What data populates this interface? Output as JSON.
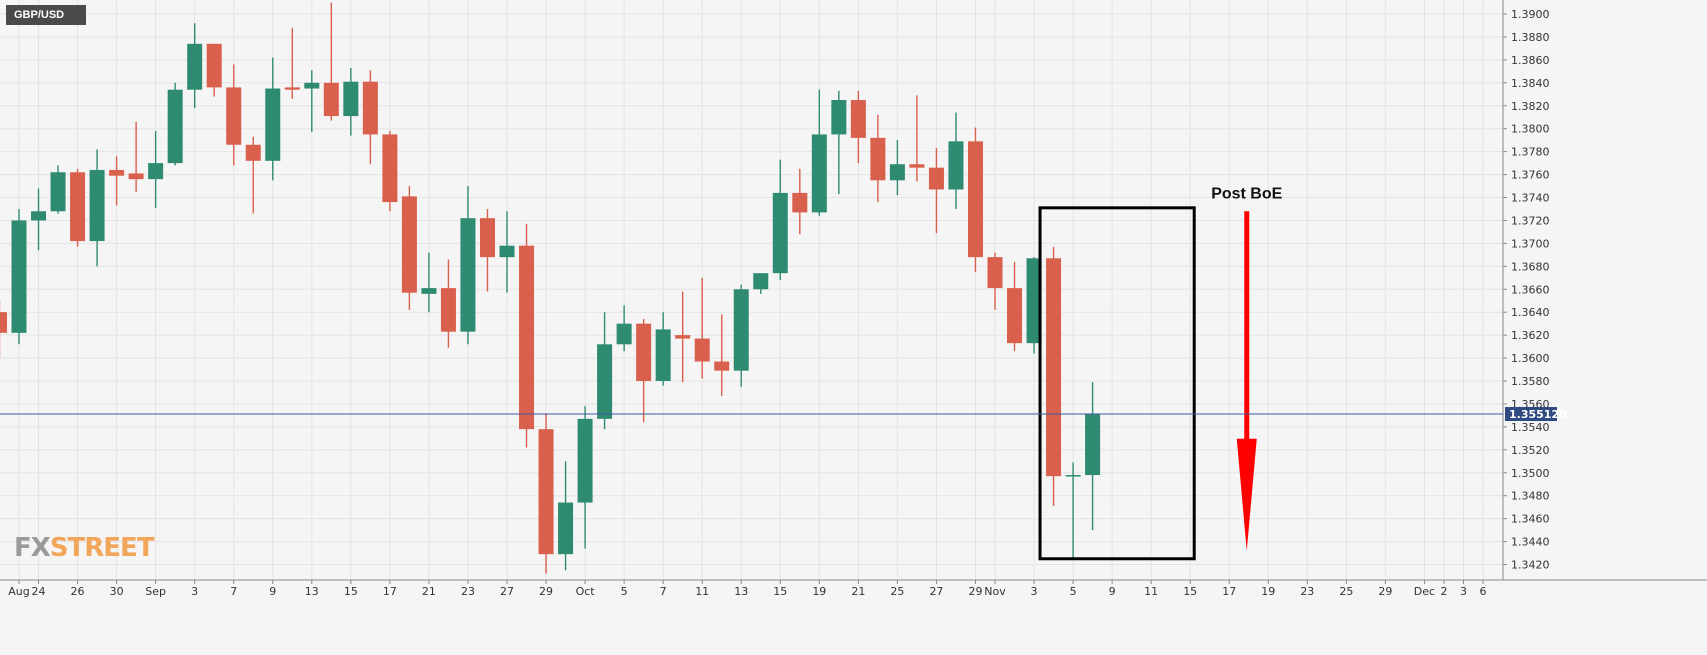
{
  "symbol": "GBP/USD",
  "logo": {
    "part1": "FX",
    "part2": "STREET"
  },
  "colors": {
    "bull": "#2e8b71",
    "bear": "#d9604c",
    "price_line": "#3a5ba0",
    "price_badge": "#2f4a80",
    "annotation_arrow": "#ff0000",
    "box": "#000000"
  },
  "chart_data": {
    "type": "candlestick",
    "title": "GBP/USD",
    "ylim": [
      1.342,
      1.391
    ],
    "y_ticks": [
      "1.3420",
      "1.3440",
      "1.3460",
      "1.3480",
      "1.3500",
      "1.3520",
      "1.3540",
      "1.3560",
      "1.3580",
      "1.3600",
      "1.3620",
      "1.3640",
      "1.3660",
      "1.3680",
      "1.3700",
      "1.3720",
      "1.3740",
      "1.3760",
      "1.3780",
      "1.3800",
      "1.3820",
      "1.3840",
      "1.3860",
      "1.3880",
      "1.3900"
    ],
    "current_price": "1.355120",
    "x_labels": [
      {
        "label": "Aug",
        "date": "2021-08-23"
      },
      {
        "label": "24",
        "date": "2021-08-24"
      },
      {
        "label": "26",
        "date": "2021-08-26"
      },
      {
        "label": "30",
        "date": "2021-08-30"
      },
      {
        "label": "Sep",
        "date": "2021-09-01"
      },
      {
        "label": "3",
        "date": "2021-09-03"
      },
      {
        "label": "7",
        "date": "2021-09-07"
      },
      {
        "label": "9",
        "date": "2021-09-09"
      },
      {
        "label": "13",
        "date": "2021-09-13"
      },
      {
        "label": "15",
        "date": "2021-09-15"
      },
      {
        "label": "17",
        "date": "2021-09-17"
      },
      {
        "label": "21",
        "date": "2021-09-21"
      },
      {
        "label": "23",
        "date": "2021-09-23"
      },
      {
        "label": "27",
        "date": "2021-09-27"
      },
      {
        "label": "29",
        "date": "2021-09-29"
      },
      {
        "label": "Oct",
        "date": "2021-10-01"
      },
      {
        "label": "5",
        "date": "2021-10-05"
      },
      {
        "label": "7",
        "date": "2021-10-07"
      },
      {
        "label": "11",
        "date": "2021-10-11"
      },
      {
        "label": "13",
        "date": "2021-10-13"
      },
      {
        "label": "15",
        "date": "2021-10-15"
      },
      {
        "label": "19",
        "date": "2021-10-19"
      },
      {
        "label": "21",
        "date": "2021-10-21"
      },
      {
        "label": "25",
        "date": "2021-10-25"
      },
      {
        "label": "27",
        "date": "2021-10-27"
      },
      {
        "label": "29",
        "date": "2021-10-29"
      },
      {
        "label": "Nov",
        "date": "2021-11-01"
      },
      {
        "label": "3",
        "date": "2021-11-03"
      },
      {
        "label": "5",
        "date": "2021-11-05"
      },
      {
        "label": "9",
        "date": "2021-11-09"
      },
      {
        "label": "11",
        "date": "2021-11-11"
      },
      {
        "label": "15",
        "date": "2021-11-15"
      },
      {
        "label": "17",
        "date": "2021-11-17"
      },
      {
        "label": "19",
        "date": "2021-11-19"
      },
      {
        "label": "23",
        "date": "2021-11-23"
      },
      {
        "label": "25",
        "date": "2021-11-25"
      },
      {
        "label": "29",
        "date": "2021-11-29"
      },
      {
        "label": "Dec",
        "date": "2021-12-01"
      },
      {
        "label": "2",
        "date": "2021-12-02"
      },
      {
        "label": "3",
        "date": "2021-12-03"
      },
      {
        "label": "6",
        "date": "2021-12-06"
      }
    ],
    "candles": [
      {
        "date": "2021-08-20",
        "open": 1.364,
        "high": 1.365,
        "low": 1.36,
        "close": 1.3622
      },
      {
        "date": "2021-08-23",
        "open": 1.3622,
        "high": 1.373,
        "low": 1.3612,
        "close": 1.372
      },
      {
        "date": "2021-08-24",
        "open": 1.372,
        "high": 1.3748,
        "low": 1.3694,
        "close": 1.3728
      },
      {
        "date": "2021-08-25",
        "open": 1.3728,
        "high": 1.3768,
        "low": 1.3726,
        "close": 1.3762
      },
      {
        "date": "2021-08-26",
        "open": 1.3762,
        "high": 1.3765,
        "low": 1.3697,
        "close": 1.3702
      },
      {
        "date": "2021-08-27",
        "open": 1.3702,
        "high": 1.3782,
        "low": 1.368,
        "close": 1.3764
      },
      {
        "date": "2021-08-30",
        "open": 1.3764,
        "high": 1.3776,
        "low": 1.3733,
        "close": 1.3759
      },
      {
        "date": "2021-08-31",
        "open": 1.3761,
        "high": 1.3806,
        "low": 1.3745,
        "close": 1.3756
      },
      {
        "date": "2021-09-01",
        "open": 1.3756,
        "high": 1.3798,
        "low": 1.3731,
        "close": 1.377
      },
      {
        "date": "2021-09-02",
        "open": 1.377,
        "high": 1.384,
        "low": 1.3768,
        "close": 1.3834
      },
      {
        "date": "2021-09-03",
        "open": 1.3834,
        "high": 1.3892,
        "low": 1.3818,
        "close": 1.3874
      },
      {
        "date": "2021-09-06",
        "open": 1.3874,
        "high": 1.3874,
        "low": 1.3828,
        "close": 1.3836
      },
      {
        "date": "2021-09-07",
        "open": 1.3836,
        "high": 1.3856,
        "low": 1.3768,
        "close": 1.3786
      },
      {
        "date": "2021-09-08",
        "open": 1.3786,
        "high": 1.3793,
        "low": 1.3726,
        "close": 1.3772
      },
      {
        "date": "2021-09-09",
        "open": 1.3772,
        "high": 1.3862,
        "low": 1.3755,
        "close": 1.3835
      },
      {
        "date": "2021-09-10",
        "open": 1.3836,
        "high": 1.3888,
        "low": 1.3826,
        "close": 1.3834
      },
      {
        "date": "2021-09-13",
        "open": 1.3835,
        "high": 1.3851,
        "low": 1.3797,
        "close": 1.384
      },
      {
        "date": "2021-09-14",
        "open": 1.384,
        "high": 1.391,
        "low": 1.3807,
        "close": 1.3811
      },
      {
        "date": "2021-09-15",
        "open": 1.3811,
        "high": 1.3853,
        "low": 1.3794,
        "close": 1.3841
      },
      {
        "date": "2021-09-16",
        "open": 1.3841,
        "high": 1.3851,
        "low": 1.3769,
        "close": 1.3795
      },
      {
        "date": "2021-09-17",
        "open": 1.3795,
        "high": 1.3798,
        "low": 1.3728,
        "close": 1.3736
      },
      {
        "date": "2021-09-20",
        "open": 1.3741,
        "high": 1.375,
        "low": 1.3642,
        "close": 1.3657
      },
      {
        "date": "2021-09-21",
        "open": 1.3656,
        "high": 1.3692,
        "low": 1.364,
        "close": 1.3661
      },
      {
        "date": "2021-09-22",
        "open": 1.3661,
        "high": 1.3686,
        "low": 1.3609,
        "close": 1.3623
      },
      {
        "date": "2021-09-23",
        "open": 1.3623,
        "high": 1.375,
        "low": 1.3612,
        "close": 1.3722
      },
      {
        "date": "2021-09-24",
        "open": 1.3722,
        "high": 1.373,
        "low": 1.3658,
        "close": 1.3688
      },
      {
        "date": "2021-09-27",
        "open": 1.3688,
        "high": 1.3728,
        "low": 1.3657,
        "close": 1.3698
      },
      {
        "date": "2021-09-28",
        "open": 1.3698,
        "high": 1.3717,
        "low": 1.3522,
        "close": 1.3538
      },
      {
        "date": "2021-09-29",
        "open": 1.3538,
        "high": 1.3552,
        "low": 1.3412,
        "close": 1.3429
      },
      {
        "date": "2021-09-30",
        "open": 1.3429,
        "high": 1.351,
        "low": 1.3415,
        "close": 1.3474
      },
      {
        "date": "2021-10-01",
        "open": 1.3474,
        "high": 1.3558,
        "low": 1.3434,
        "close": 1.3547
      },
      {
        "date": "2021-10-04",
        "open": 1.3547,
        "high": 1.364,
        "low": 1.3538,
        "close": 1.3612
      },
      {
        "date": "2021-10-05",
        "open": 1.3612,
        "high": 1.3646,
        "low": 1.3606,
        "close": 1.363
      },
      {
        "date": "2021-10-06",
        "open": 1.363,
        "high": 1.3634,
        "low": 1.3544,
        "close": 1.358
      },
      {
        "date": "2021-10-07",
        "open": 1.358,
        "high": 1.364,
        "low": 1.3576,
        "close": 1.3625
      },
      {
        "date": "2021-10-08",
        "open": 1.362,
        "high": 1.3658,
        "low": 1.3579,
        "close": 1.3617
      },
      {
        "date": "2021-10-11",
        "open": 1.3617,
        "high": 1.367,
        "low": 1.3582,
        "close": 1.3597
      },
      {
        "date": "2021-10-12",
        "open": 1.3597,
        "high": 1.3638,
        "low": 1.3567,
        "close": 1.3589
      },
      {
        "date": "2021-10-13",
        "open": 1.3589,
        "high": 1.3664,
        "low": 1.3575,
        "close": 1.366
      },
      {
        "date": "2021-10-14",
        "open": 1.366,
        "high": 1.3674,
        "low": 1.3656,
        "close": 1.3674
      },
      {
        "date": "2021-10-15",
        "open": 1.3674,
        "high": 1.3773,
        "low": 1.3668,
        "close": 1.3744
      },
      {
        "date": "2021-10-18",
        "open": 1.3744,
        "high": 1.3765,
        "low": 1.3708,
        "close": 1.3727
      },
      {
        "date": "2021-10-19",
        "open": 1.3727,
        "high": 1.3834,
        "low": 1.3724,
        "close": 1.3795
      },
      {
        "date": "2021-10-20",
        "open": 1.3795,
        "high": 1.3833,
        "low": 1.3743,
        "close": 1.3825
      },
      {
        "date": "2021-10-21",
        "open": 1.3825,
        "high": 1.3833,
        "low": 1.377,
        "close": 1.3792
      },
      {
        "date": "2021-10-22",
        "open": 1.3792,
        "high": 1.3812,
        "low": 1.3736,
        "close": 1.3755
      },
      {
        "date": "2021-10-25",
        "open": 1.3755,
        "high": 1.379,
        "low": 1.3742,
        "close": 1.3769
      },
      {
        "date": "2021-10-26",
        "open": 1.3769,
        "high": 1.3829,
        "low": 1.3754,
        "close": 1.3766
      },
      {
        "date": "2021-10-27",
        "open": 1.3766,
        "high": 1.3783,
        "low": 1.3709,
        "close": 1.3747
      },
      {
        "date": "2021-10-28",
        "open": 1.3747,
        "high": 1.3814,
        "low": 1.373,
        "close": 1.3789
      },
      {
        "date": "2021-10-29",
        "open": 1.3789,
        "high": 1.3801,
        "low": 1.3675,
        "close": 1.3688
      },
      {
        "date": "2021-11-01",
        "open": 1.3688,
        "high": 1.3692,
        "low": 1.3642,
        "close": 1.3661
      },
      {
        "date": "2021-11-02",
        "open": 1.3661,
        "high": 1.3684,
        "low": 1.3606,
        "close": 1.3613
      },
      {
        "date": "2021-11-03",
        "open": 1.3613,
        "high": 1.3688,
        "low": 1.3604,
        "close": 1.3687
      },
      {
        "date": "2021-11-04",
        "open": 1.3687,
        "high": 1.3697,
        "low": 1.3471,
        "close": 1.3497
      },
      {
        "date": "2021-11-05",
        "open": 1.3497,
        "high": 1.3509,
        "low": 1.3425,
        "close": 1.3498
      },
      {
        "date": "2021-11-08",
        "open": 1.3498,
        "high": 1.3579,
        "low": 1.345,
        "close": 1.3551
      }
    ],
    "annotations": [
      {
        "type": "box",
        "x0": "2021-11-03",
        "x1": "2021-11-15",
        "y0": 1.3425,
        "y1": 1.3731
      },
      {
        "type": "arrow",
        "label": "Post BoE",
        "x": "2021-11-18",
        "y_start": 1.3728,
        "y_end": 1.3432
      }
    ]
  }
}
